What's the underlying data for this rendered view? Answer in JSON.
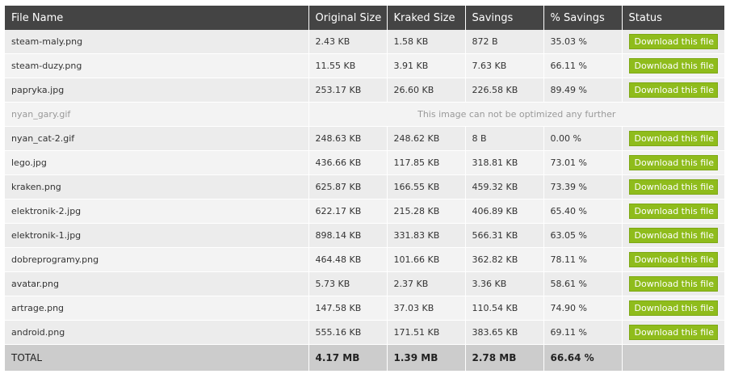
{
  "headers": {
    "file_name": "File Name",
    "original_size": "Original Size",
    "kraked_size": "Kraked Size",
    "savings": "Savings",
    "pct_savings": "% Savings",
    "status": "Status"
  },
  "button_label": "Download this file",
  "no_optimize_message": "This image can not be optimized any further",
  "rows": [
    {
      "name": "steam-maly.png",
      "original": "2.43 KB",
      "kraked": "1.58 KB",
      "savings": "872 B",
      "pct": "35.03 %"
    },
    {
      "name": "steam-duzy.png",
      "original": "11.55 KB",
      "kraked": "3.91 KB",
      "savings": "7.63 KB",
      "pct": "66.11 %"
    },
    {
      "name": "papryka.jpg",
      "original": "253.17 KB",
      "kraked": "26.60 KB",
      "savings": "226.58 KB",
      "pct": "89.49 %"
    },
    {
      "name": "nyan_gary.gif"
    },
    {
      "name": "nyan_cat-2.gif",
      "original": "248.63 KB",
      "kraked": "248.62 KB",
      "savings": "8 B",
      "pct": "0.00 %"
    },
    {
      "name": "lego.jpg",
      "original": "436.66 KB",
      "kraked": "117.85 KB",
      "savings": "318.81 KB",
      "pct": "73.01 %"
    },
    {
      "name": "kraken.png",
      "original": "625.87 KB",
      "kraked": "166.55 KB",
      "savings": "459.32 KB",
      "pct": "73.39 %"
    },
    {
      "name": "elektronik-2.jpg",
      "original": "622.17 KB",
      "kraked": "215.28 KB",
      "savings": "406.89 KB",
      "pct": "65.40 %"
    },
    {
      "name": "elektronik-1.jpg",
      "original": "898.14 KB",
      "kraked": "331.83 KB",
      "savings": "566.31 KB",
      "pct": "63.05 %"
    },
    {
      "name": "dobreprogramy.png",
      "original": "464.48 KB",
      "kraked": "101.66 KB",
      "savings": "362.82 KB",
      "pct": "78.11 %"
    },
    {
      "name": "avatar.png",
      "original": "5.73 KB",
      "kraked": "2.37 KB",
      "savings": "3.36 KB",
      "pct": "58.61 %"
    },
    {
      "name": "artrage.png",
      "original": "147.58 KB",
      "kraked": "37.03 KB",
      "savings": "110.54 KB",
      "pct": "74.90 %"
    },
    {
      "name": "android.png",
      "original": "555.16 KB",
      "kraked": "171.51 KB",
      "savings": "383.65 KB",
      "pct": "69.11 %"
    }
  ],
  "total": {
    "label": "TOTAL",
    "original": "4.17 MB",
    "kraked": "1.39 MB",
    "savings": "2.78 MB",
    "pct": "66.64 %"
  },
  "colors": {
    "header_bg": "#444444",
    "button_bg": "#8fbc1c",
    "total_bg": "#cccccc"
  }
}
